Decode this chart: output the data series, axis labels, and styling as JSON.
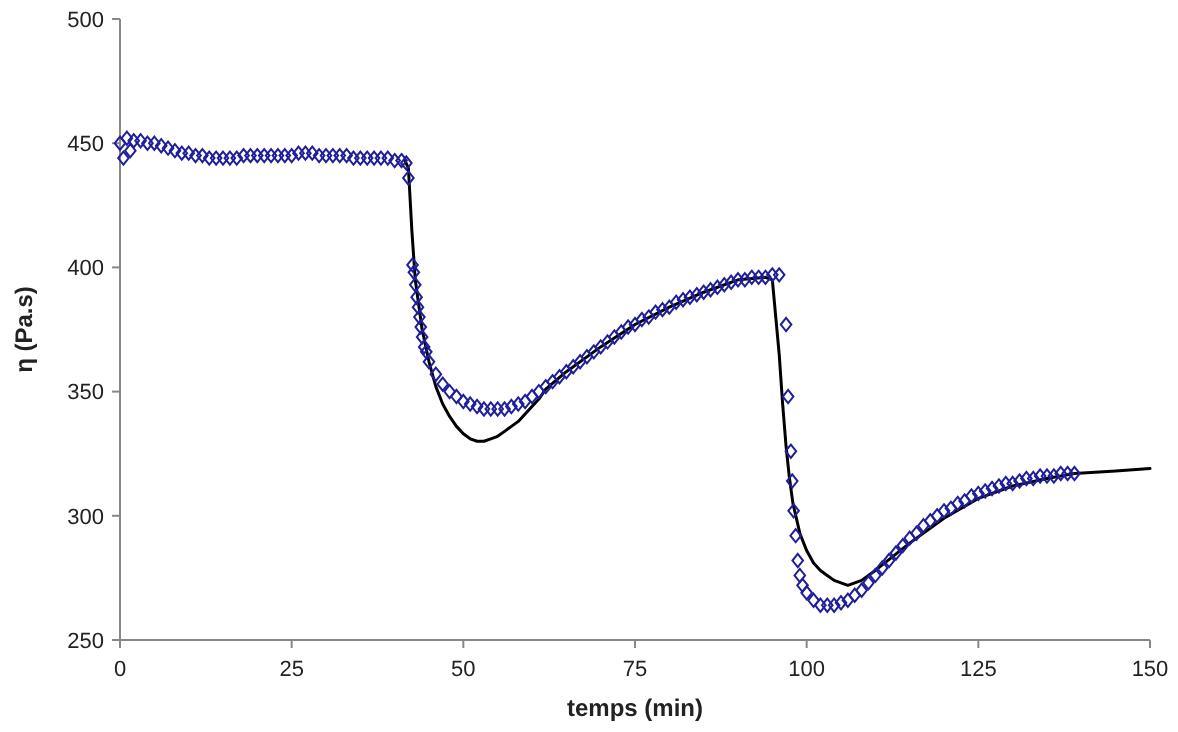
{
  "chart_data": {
    "type": "scatter",
    "xlabel": "temps (min)",
    "ylabel": "η (Pa.s)",
    "xlim": [
      0,
      150
    ],
    "ylim": [
      250,
      500
    ],
    "xticks": [
      0,
      25,
      50,
      75,
      100,
      125,
      150
    ],
    "yticks": [
      250,
      300,
      350,
      400,
      450,
      500
    ],
    "grid": false,
    "series": [
      {
        "type": "line",
        "color": "#000000",
        "marker": "none",
        "line_style": "solid",
        "x": [
          41.5,
          42,
          42.5,
          43,
          44,
          45,
          46,
          47,
          48,
          49,
          50,
          51,
          52,
          53,
          54,
          55,
          56,
          57,
          58,
          59,
          60,
          61,
          62,
          65,
          70,
          75,
          80,
          85,
          90,
          94,
          95,
          95.5,
          96,
          96.5,
          97,
          97.5,
          98,
          99,
          100,
          101,
          102,
          103,
          104,
          105,
          106,
          107,
          108,
          110,
          115,
          120,
          125,
          130,
          135,
          139,
          145,
          150
        ],
        "values": [
          443,
          440,
          415,
          395,
          375,
          362,
          352,
          345,
          340,
          336,
          333,
          331,
          330,
          330,
          331,
          332,
          334,
          336,
          338,
          341,
          344,
          347,
          351,
          358,
          368,
          377,
          384,
          390,
          395,
          396,
          395,
          380,
          365,
          345,
          328,
          315,
          305,
          293,
          286,
          281,
          278,
          276,
          274,
          273,
          272,
          273,
          274,
          278,
          289,
          299,
          307,
          312,
          315,
          317,
          318,
          319
        ]
      },
      {
        "color": "#1f1f9c",
        "marker": "diamond",
        "x": [
          0,
          0.5,
          1,
          1.5,
          2,
          3,
          4,
          5,
          6,
          7,
          8,
          9,
          10,
          11,
          12,
          13,
          14,
          15,
          16,
          17,
          18,
          19,
          20,
          21,
          22,
          23,
          24,
          25,
          26,
          27,
          28,
          29,
          30,
          31,
          32,
          33,
          34,
          35,
          36,
          37,
          38,
          39,
          40,
          41,
          41.7,
          42,
          42.6,
          42.8,
          43,
          43.2,
          43.4,
          43.6,
          43.8,
          44,
          44.3,
          44.6,
          45,
          46,
          47,
          48,
          49,
          50,
          51,
          52,
          53,
          54,
          55,
          56,
          57,
          58,
          59,
          60,
          61,
          62,
          63,
          64,
          65,
          66,
          67,
          68,
          69,
          70,
          71,
          72,
          73,
          74,
          75,
          76,
          77,
          78,
          79,
          80,
          81,
          82,
          83,
          84,
          85,
          86,
          87,
          88,
          89,
          90,
          91,
          92,
          93,
          94,
          95,
          96,
          97,
          97.3,
          97.7,
          97.9,
          98.1,
          98.4,
          98.7,
          99,
          99.4,
          100,
          101,
          102,
          103,
          104,
          105,
          106,
          107,
          108,
          109,
          110,
          111,
          112,
          113,
          114,
          115,
          116,
          117,
          118,
          119,
          120,
          121,
          122,
          123,
          124,
          125,
          126,
          127,
          128,
          129,
          130,
          131,
          132,
          133,
          134,
          135,
          136,
          137,
          138,
          139
        ],
        "values": [
          450,
          444,
          452,
          447,
          451,
          451,
          450,
          450,
          449,
          448,
          447,
          446,
          446,
          445,
          445,
          444,
          444,
          444,
          444,
          444,
          445,
          445,
          445,
          445,
          445,
          445,
          445,
          445,
          446,
          446,
          446,
          445,
          445,
          445,
          445,
          445,
          444,
          444,
          444,
          444,
          444,
          444,
          443,
          443,
          442,
          436,
          401,
          398,
          393,
          388,
          384,
          380,
          376,
          372,
          368,
          366,
          362,
          357,
          353,
          350,
          348,
          346,
          345,
          344,
          343,
          343,
          343,
          343,
          344,
          345,
          346,
          348,
          350,
          352,
          354,
          356,
          358,
          360,
          362,
          364,
          366,
          368,
          370,
          372,
          374,
          376,
          377,
          379,
          380,
          382,
          383,
          384,
          386,
          387,
          388,
          389,
          390,
          391,
          392,
          393,
          394,
          395,
          395,
          396,
          396,
          396,
          397,
          397,
          377,
          348,
          326,
          314,
          302,
          292,
          282,
          276,
          272,
          269,
          266,
          264,
          264,
          264,
          265,
          266,
          268,
          270,
          273,
          276,
          279,
          282,
          285,
          288,
          291,
          293,
          296,
          298,
          300,
          302,
          303,
          305,
          306,
          308,
          309,
          310,
          311,
          312,
          313,
          313,
          314,
          315,
          315,
          316,
          316,
          316,
          317,
          317,
          317
        ]
      }
    ]
  }
}
